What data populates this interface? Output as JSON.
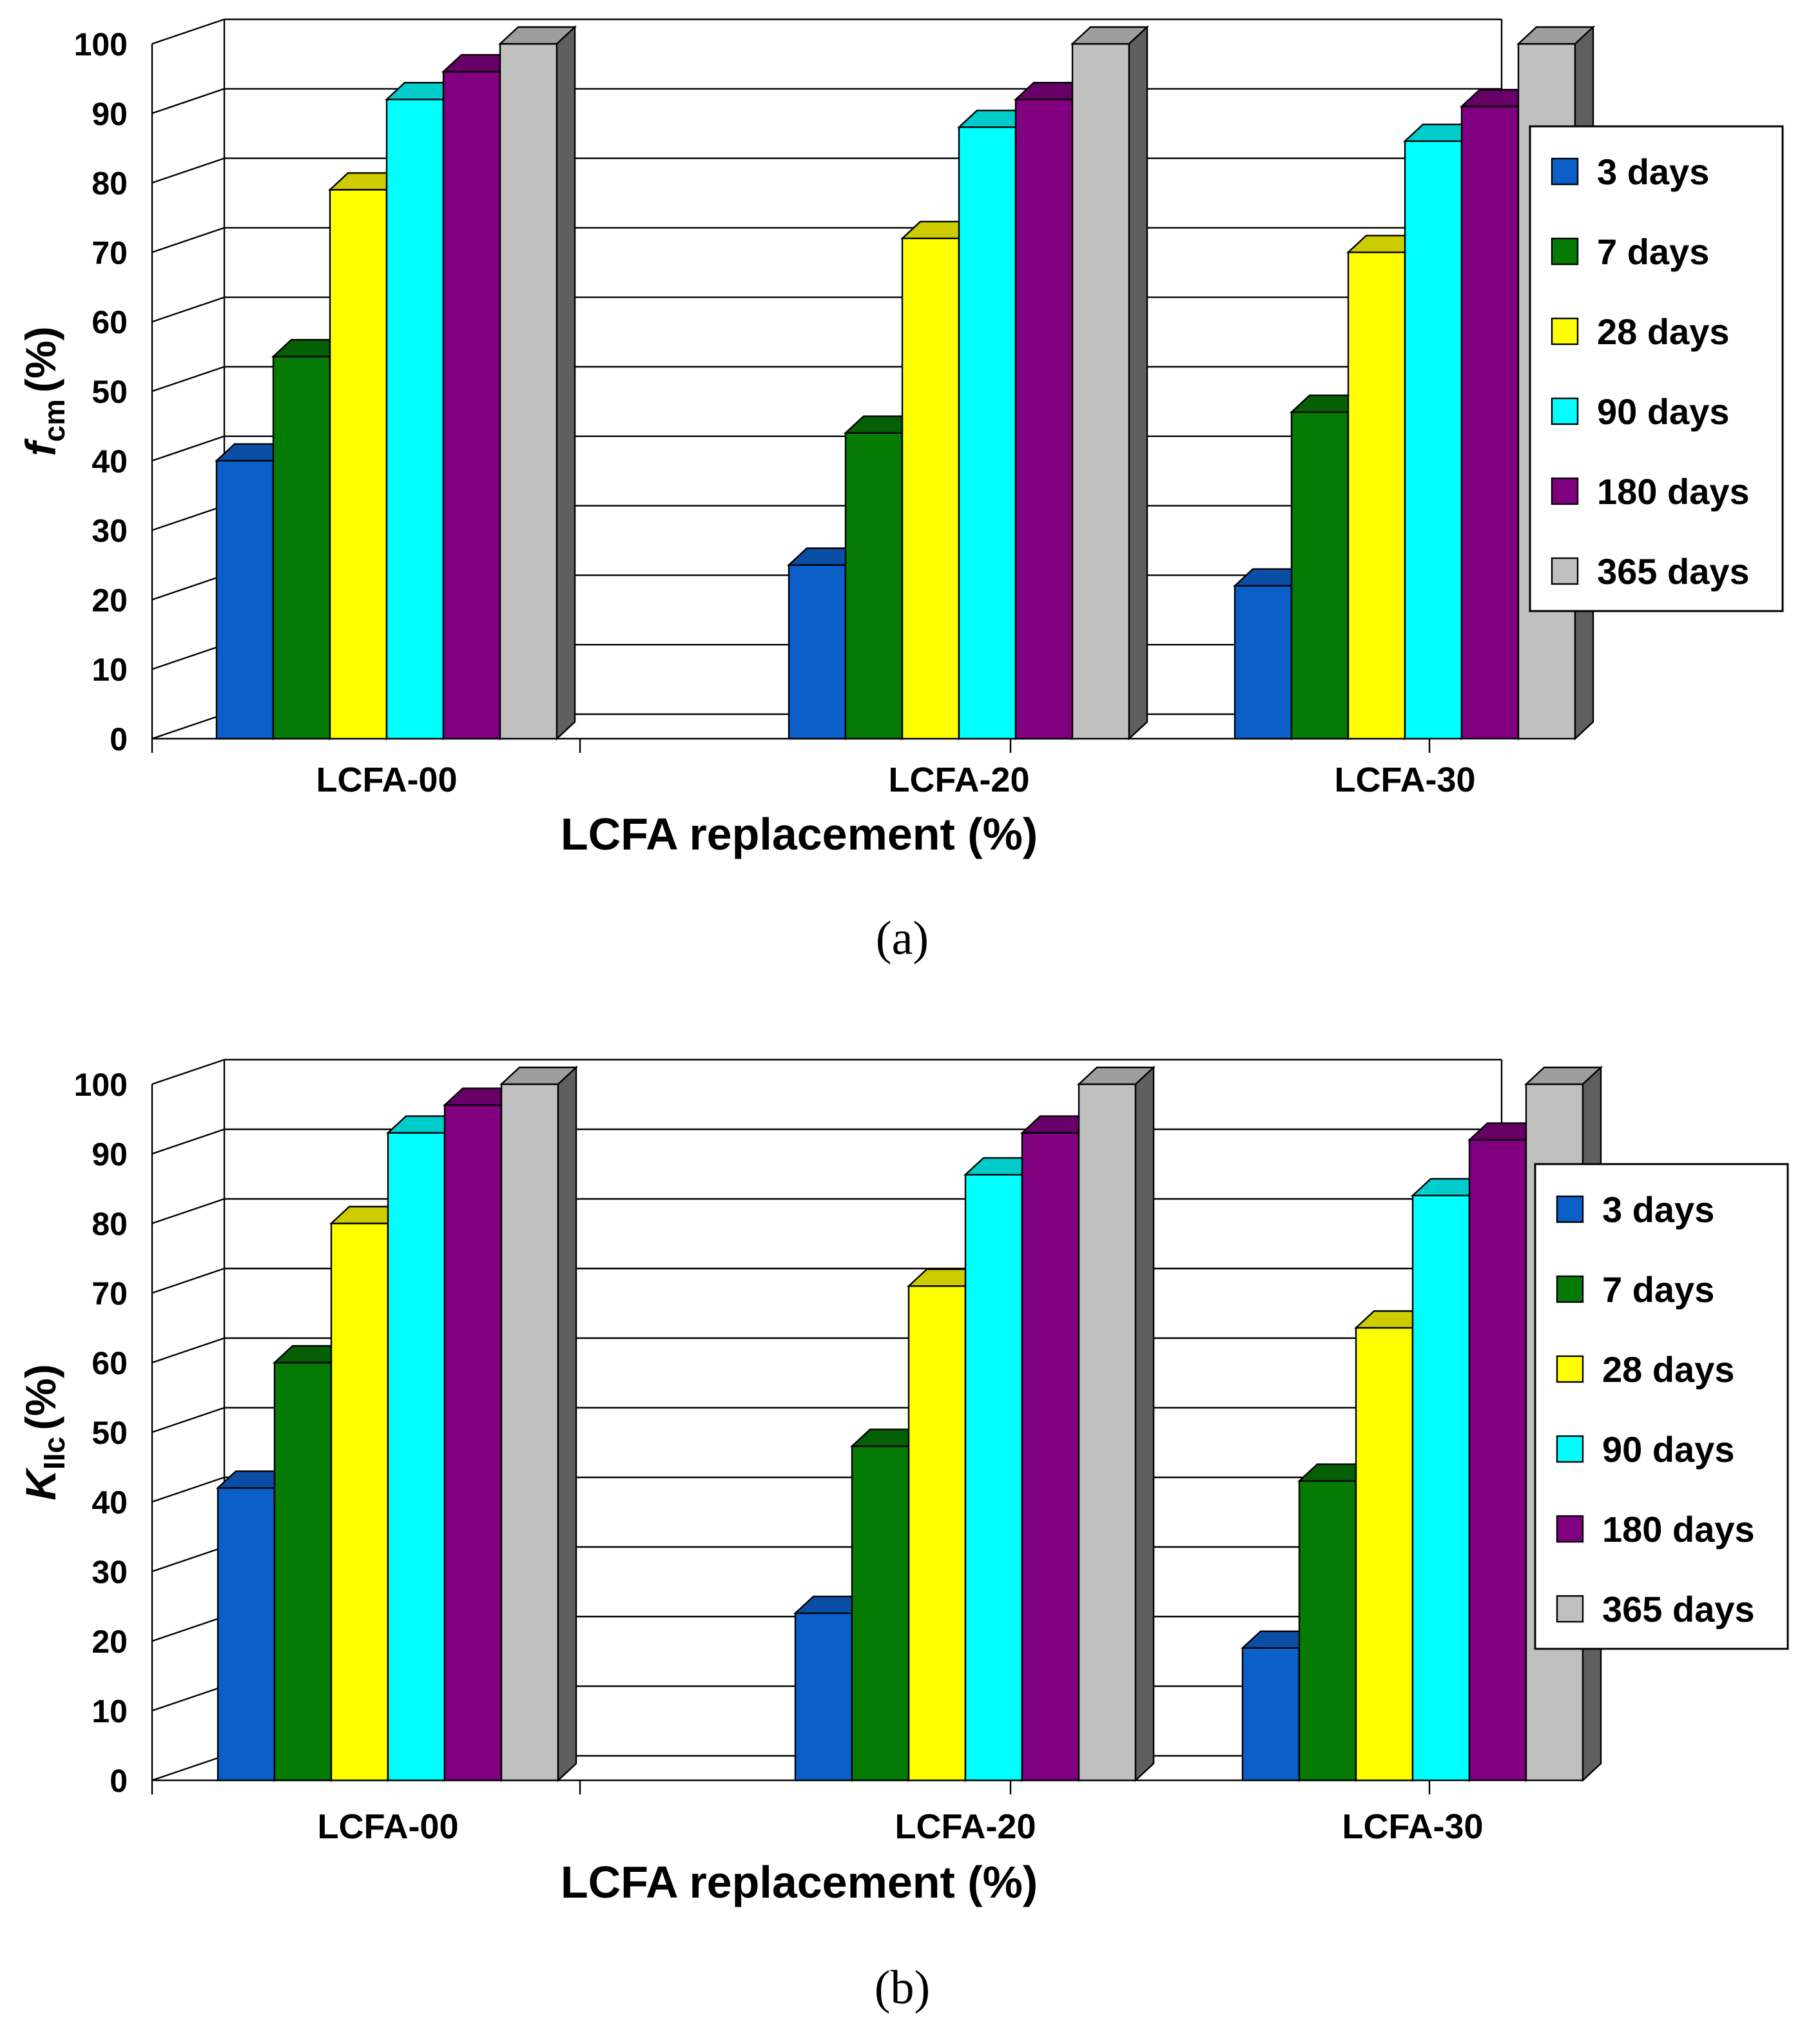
{
  "colors": {
    "series": [
      "#0a5fc8",
      "#057a05",
      "#ffff00",
      "#00ffff",
      "#800080",
      "#c0c0c0"
    ],
    "top": [
      "#0b4ea6",
      "#056005",
      "#cccc00",
      "#00cccc",
      "#660066",
      "#9e9e9e"
    ],
    "side": [
      "#063c80",
      "#034303",
      "#999900",
      "#009999",
      "#4d004d",
      "#5f5f5f"
    ]
  },
  "chart_data": [
    {
      "type": "bar",
      "panel_label": "(a)",
      "ylabel_symbol": "f",
      "ylabel_subscript": "cm",
      "ylabel_unit": "(%)",
      "xlabel": "LCFA replacement (%)",
      "categories": [
        "LCFA-00",
        "LCFA-20",
        "LCFA-30"
      ],
      "ylim": [
        0,
        100
      ],
      "yticks": [
        "0",
        "10",
        "20",
        "30",
        "40",
        "50",
        "60",
        "70",
        "80",
        "90",
        "100"
      ],
      "grid": true,
      "legend_position": "right",
      "series": [
        {
          "name": "3 days",
          "values": [
            40,
            25,
            22
          ]
        },
        {
          "name": "7 days",
          "values": [
            55,
            44,
            47
          ]
        },
        {
          "name": "28 days",
          "values": [
            79,
            72,
            70
          ]
        },
        {
          "name": "90 days",
          "values": [
            92,
            88,
            86
          ]
        },
        {
          "name": "180 days",
          "values": [
            96,
            92,
            91
          ]
        },
        {
          "name": "365 days",
          "values": [
            100,
            100,
            100
          ]
        }
      ]
    },
    {
      "type": "bar",
      "panel_label": "(b)",
      "ylabel_symbol": "K",
      "ylabel_subscript": "IIc",
      "ylabel_unit": "(%)",
      "xlabel": "LCFA replacement (%)",
      "categories": [
        "LCFA-00",
        "LCFA-20",
        "LCFA-30"
      ],
      "ylim": [
        0,
        100
      ],
      "yticks": [
        "0",
        "10",
        "20",
        "30",
        "40",
        "50",
        "60",
        "70",
        "80",
        "90",
        "100"
      ],
      "grid": true,
      "legend_position": "right",
      "series": [
        {
          "name": "3 days",
          "values": [
            42,
            24,
            19
          ]
        },
        {
          "name": "7 days",
          "values": [
            60,
            48,
            43
          ]
        },
        {
          "name": "28 days",
          "values": [
            80,
            71,
            65
          ]
        },
        {
          "name": "90 days",
          "values": [
            93,
            87,
            84
          ]
        },
        {
          "name": "180 days",
          "values": [
            97,
            93,
            92
          ]
        },
        {
          "name": "365 days",
          "values": [
            100,
            100,
            100
          ]
        }
      ]
    }
  ]
}
